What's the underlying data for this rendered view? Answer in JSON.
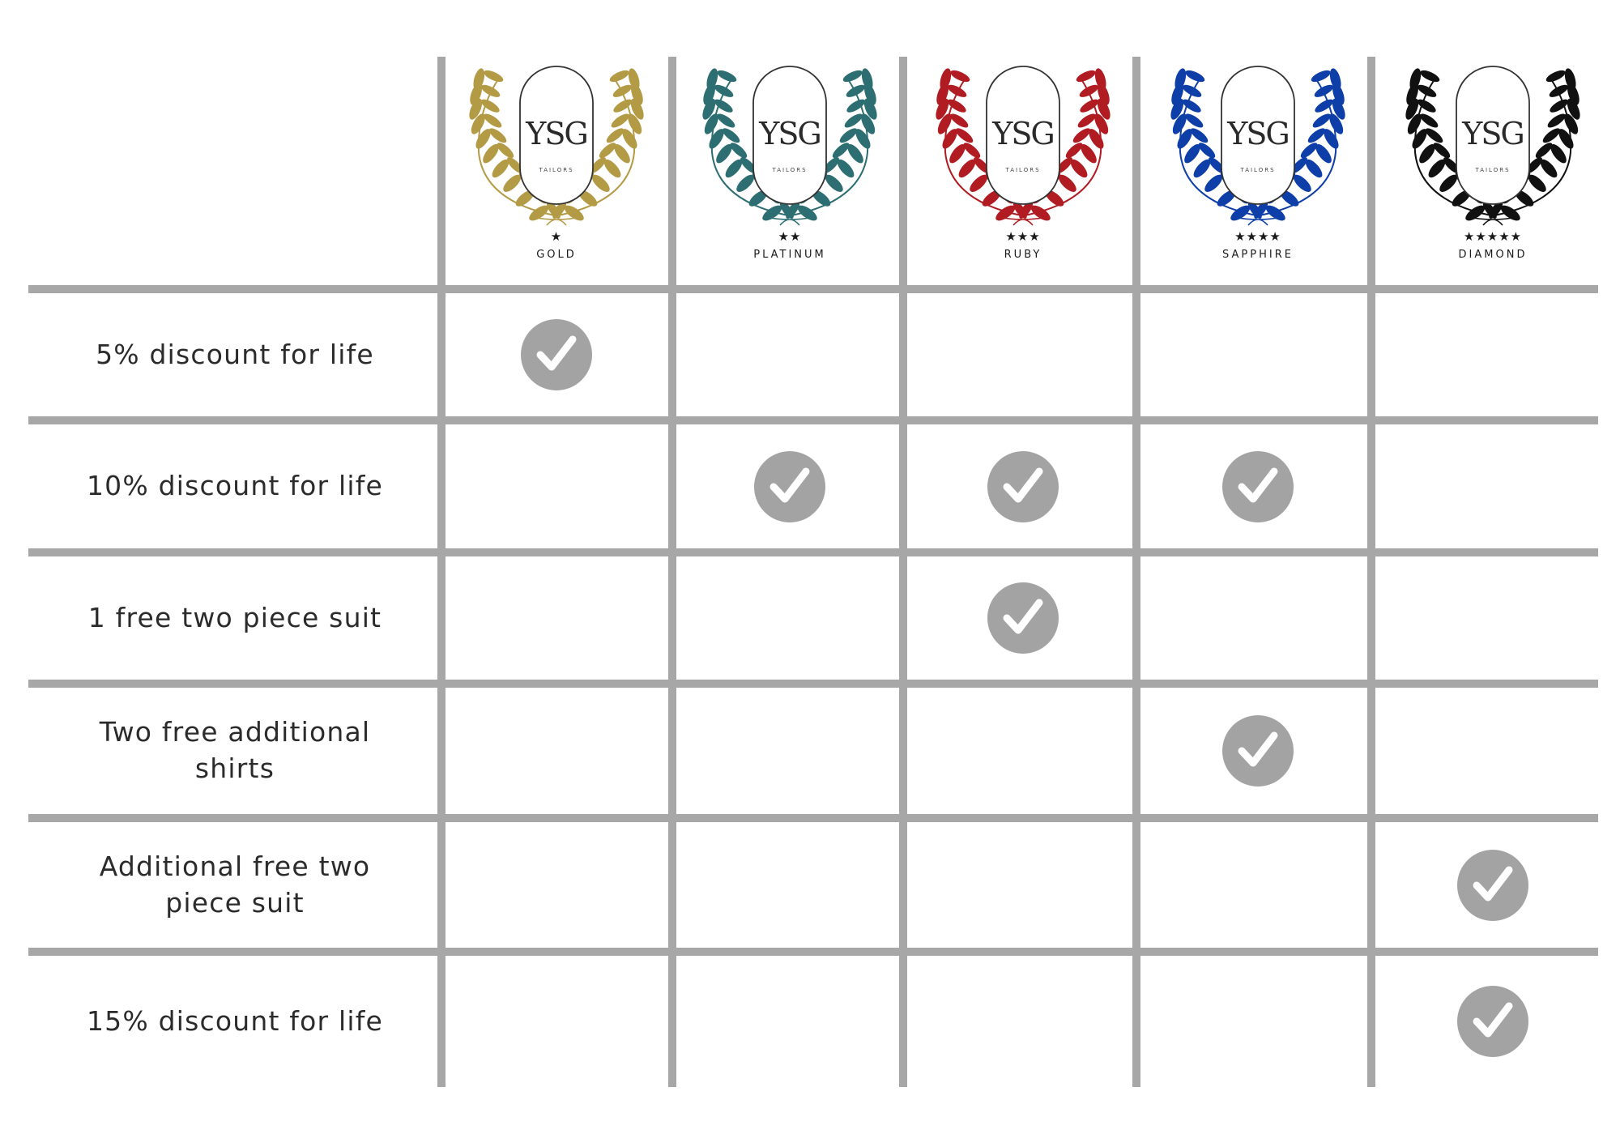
{
  "brand": {
    "logo_text": "YSG",
    "logo_subtext": "TAILORS"
  },
  "tiers": [
    {
      "name": "GOLD",
      "stars": "★",
      "color": "#b39a45"
    },
    {
      "name": "PLATINUM",
      "stars": "★★",
      "color": "#2d6e72"
    },
    {
      "name": "RUBY",
      "stars": "★★★",
      "color": "#b01c22"
    },
    {
      "name": "SAPPHIRE",
      "stars": "★★★★",
      "color": "#0e3ea8"
    },
    {
      "name": "DIAMOND",
      "stars": "★★★★★",
      "color": "#111111"
    }
  ],
  "benefits": [
    {
      "label": "5% discount for life",
      "included": [
        true,
        false,
        false,
        false,
        false
      ]
    },
    {
      "label": "10% discount for life",
      "included": [
        false,
        true,
        true,
        true,
        false
      ]
    },
    {
      "label": "1 free two piece suit",
      "included": [
        false,
        false,
        true,
        false,
        false
      ]
    },
    {
      "label": "Two free additional shirts",
      "included": [
        false,
        false,
        false,
        true,
        false
      ]
    },
    {
      "label": "Additional free two piece suit",
      "included": [
        false,
        false,
        false,
        false,
        true
      ]
    },
    {
      "label": "15% discount for life",
      "included": [
        false,
        false,
        false,
        false,
        true
      ]
    }
  ],
  "colors": {
    "grid": "#a7a7a7",
    "check_circle": "#a3a3a3",
    "check_mark": "#ffffff",
    "text": "#2b2b2b"
  },
  "icons": {
    "check": "check-circle-icon",
    "laurel": "laurel-wreath-icon"
  }
}
